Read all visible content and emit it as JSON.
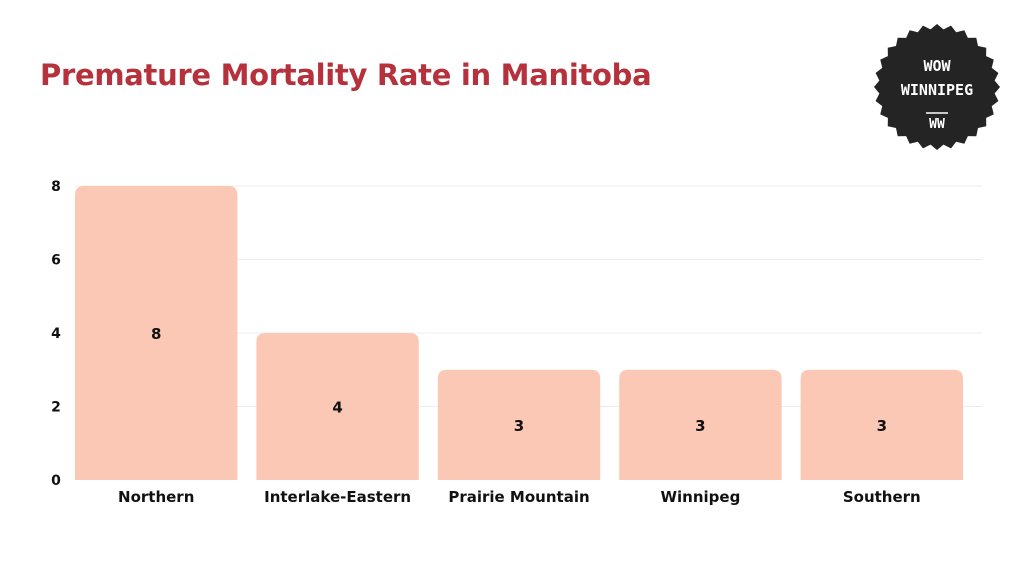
{
  "colors": {
    "title": "#b5323d",
    "bar": "#fcc8b6",
    "grid": "#ececec",
    "text": "#111111",
    "badge_bg": "#242424",
    "badge_text": "#ffffff"
  },
  "badge": {
    "line1": "WOW",
    "line2": "WINNIPEG",
    "line3": "WW"
  },
  "chart_data": {
    "type": "bar",
    "title": "Premature Mortality Rate in Manitoba",
    "xlabel": "",
    "ylabel": "",
    "categories": [
      "Northern",
      "Interlake-Eastern",
      "Prairie Mountain",
      "Winnipeg",
      "Southern"
    ],
    "values": [
      8,
      4,
      3,
      3,
      3
    ],
    "data_labels": [
      "8",
      "4",
      "3",
      "3",
      "3"
    ],
    "ylim": [
      0,
      8
    ],
    "yticks": [
      0,
      2,
      4,
      6,
      8
    ],
    "grid": true,
    "legend": "none"
  }
}
